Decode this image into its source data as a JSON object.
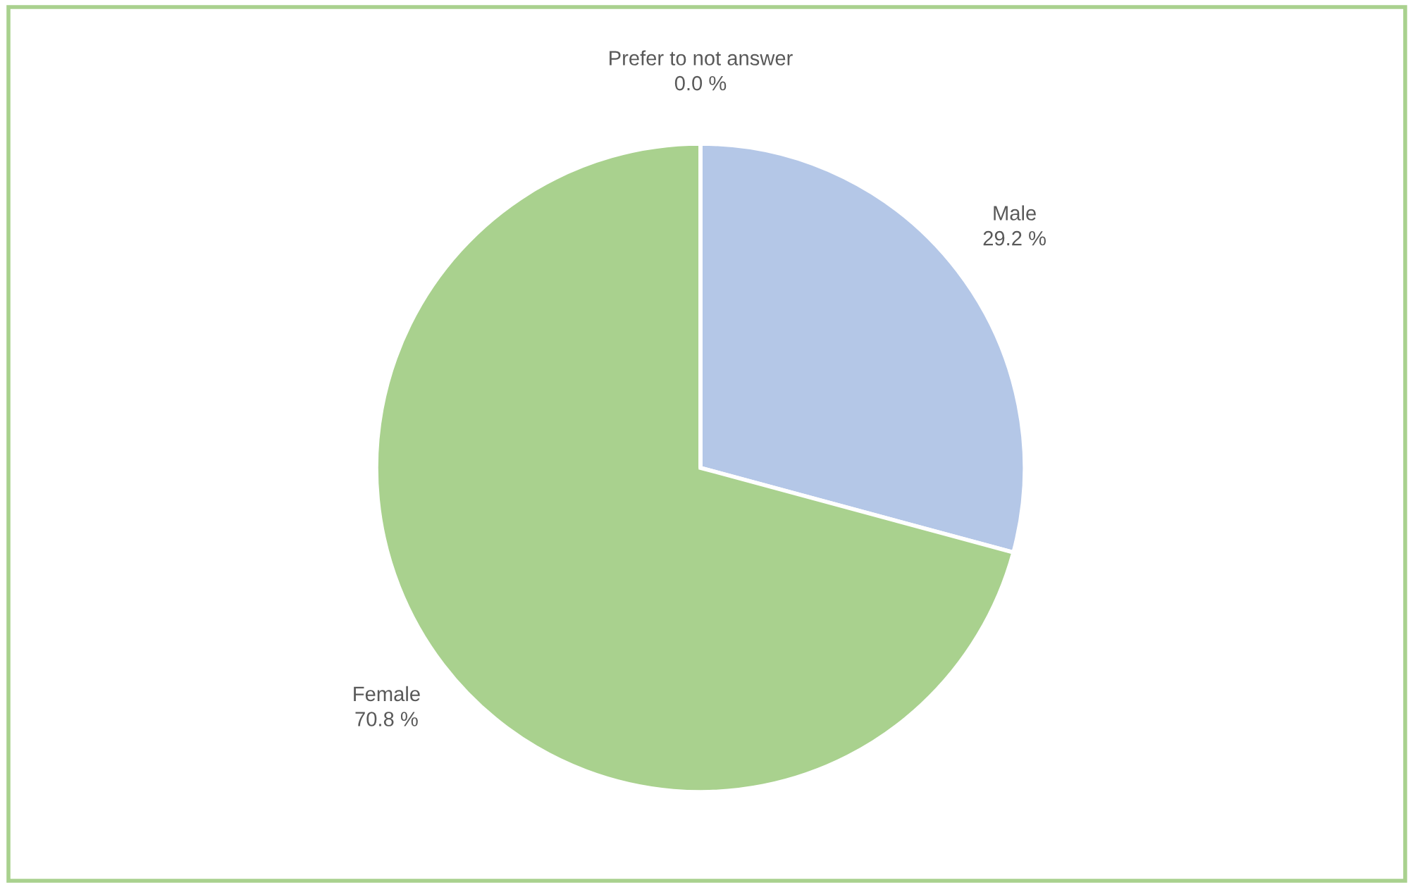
{
  "chart_data": {
    "type": "pie",
    "categories": [
      "Male",
      "Female",
      "Prefer to not answer"
    ],
    "values": [
      29.2,
      70.8,
      0.0
    ],
    "colors": [
      "#b4c7e7",
      "#a9d18e",
      "#c9c9c9"
    ],
    "value_labels": [
      "29.2 %",
      "70.8 %",
      "0.0 %"
    ]
  }
}
